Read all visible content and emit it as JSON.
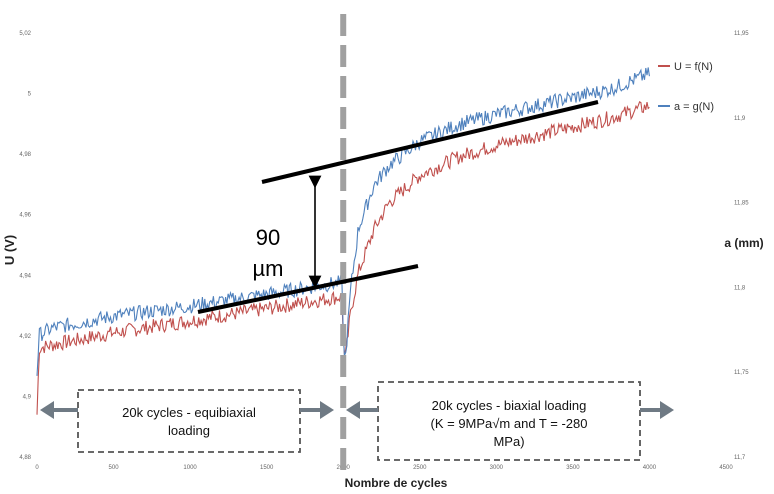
{
  "chart_data": {
    "type": "line",
    "title": "",
    "xlabel": "Nombre de cycles",
    "ylabel_left": "U (V)",
    "ylabel_right": "a (mm)",
    "xlim": [
      0,
      4500
    ],
    "ylim_left": [
      4.88,
      5.02
    ],
    "ylim_right": [
      11.7,
      11.95
    ],
    "x_ticks": [
      "0",
      "500",
      "1000",
      "1500",
      "2000",
      "2500",
      "3000",
      "3500",
      "4000",
      "4500"
    ],
    "y_ticks_left": [
      "4,88",
      "4,9",
      "4,92",
      "4,94",
      "4,96",
      "4,98",
      "5",
      "5,02"
    ],
    "y_ticks_right": [
      "11,7",
      "11,75",
      "11,8",
      "11,85",
      "11,9",
      "11,95"
    ],
    "grid": false,
    "legend_position": "top-right",
    "series": [
      {
        "name": "U = f(N)",
        "color": "#c0504d",
        "axis": "left",
        "x": [
          0,
          15,
          100,
          500,
          1000,
          1500,
          1990,
          2010,
          2050,
          2100,
          2200,
          2300,
          2500,
          2750,
          3000,
          3250,
          3500,
          3750,
          4000
        ],
        "y": [
          4.894,
          4.916,
          4.917,
          4.921,
          4.925,
          4.929,
          4.933,
          4.911,
          4.928,
          4.941,
          4.955,
          4.964,
          4.973,
          4.979,
          4.983,
          4.986,
          4.989,
          4.992,
          4.996
        ]
      },
      {
        "name": "a = g(N)",
        "color": "#4f81bd",
        "axis": "right",
        "x": [
          0,
          15,
          100,
          500,
          1000,
          1500,
          1990,
          2010,
          2050,
          2100,
          2200,
          2300,
          2500,
          2750,
          3000,
          3250,
          3500,
          3750,
          4000
        ],
        "y": [
          11.75,
          11.772,
          11.776,
          11.783,
          11.789,
          11.796,
          11.803,
          11.753,
          11.8,
          11.835,
          11.86,
          11.872,
          11.886,
          11.896,
          11.902,
          11.907,
          11.912,
          11.917,
          11.926
        ]
      }
    ],
    "annotations": {
      "gap_label_line1": "90",
      "gap_label_line2": "µm",
      "left_phase": "20k cycles - equibiaxial loading",
      "right_phase_line1": "20k cycles - biaxial loading",
      "right_phase_line2": "(K = 9MPa√m and T = -280",
      "right_phase_line3": "MPa)",
      "phase_divider_x": 2000
    }
  },
  "colors": {
    "u_series": "#c0504d",
    "a_series": "#4f81bd",
    "divider": "#a0a0a0",
    "arrows": "#6f7a84",
    "box_border": "#555555"
  }
}
